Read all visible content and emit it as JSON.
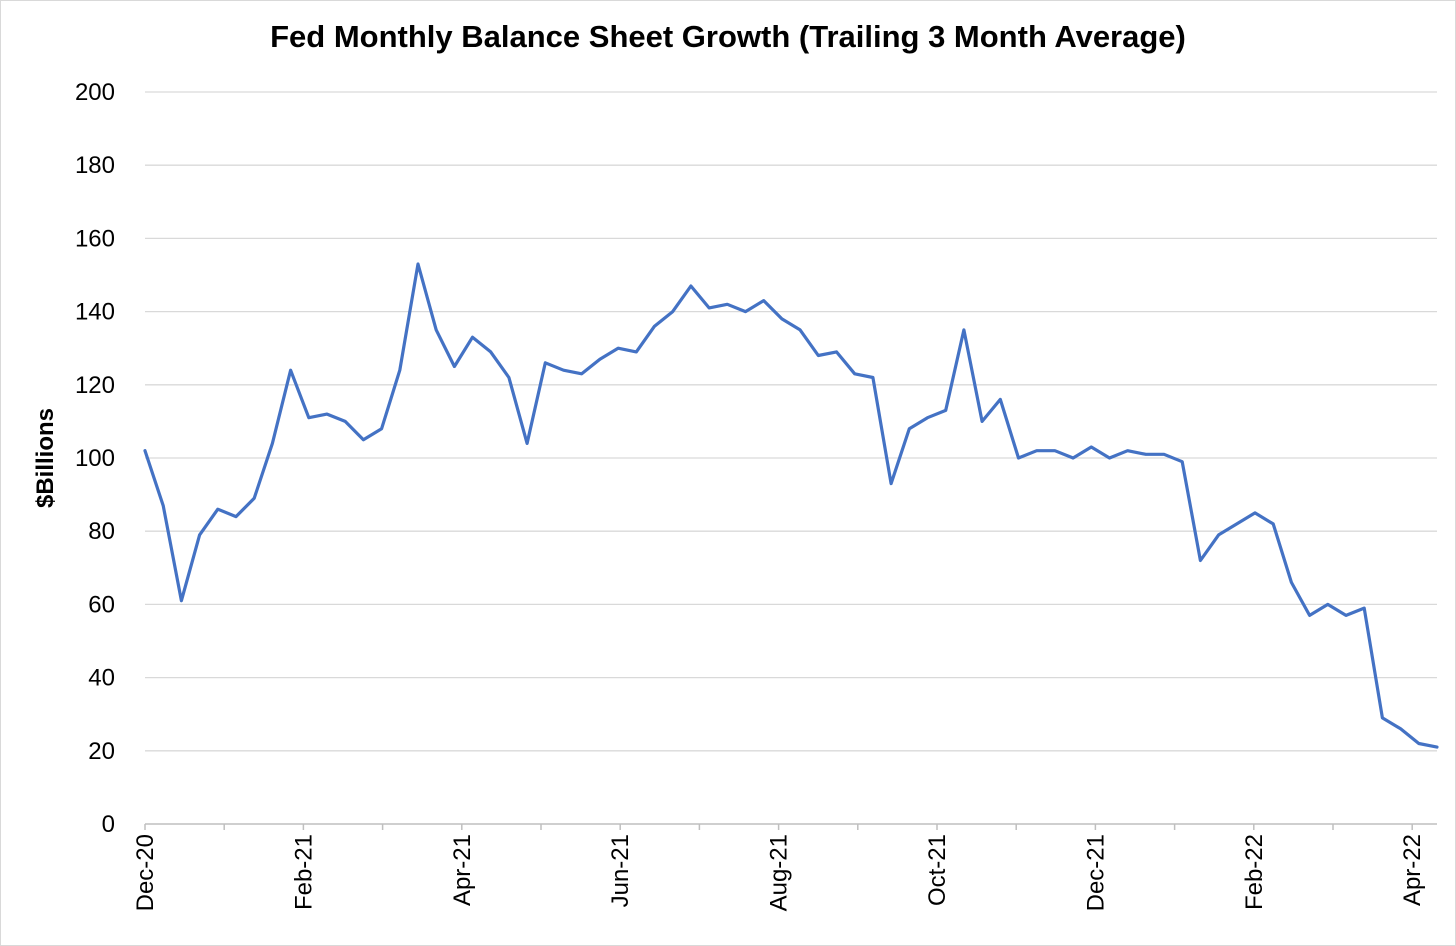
{
  "chart_data": {
    "type": "line",
    "title": "Fed Monthly Balance Sheet Growth (Trailing 3 Month Average)",
    "xlabel": "",
    "ylabel": "$Billions",
    "ylim": [
      0,
      200
    ],
    "yticks": [
      0,
      20,
      40,
      60,
      80,
      100,
      120,
      140,
      160,
      180,
      200
    ],
    "grid": "horizontal",
    "legend": "none",
    "x_tick_labels": [
      "Dec-20",
      "Feb-21",
      "Apr-21",
      "Jun-21",
      "Aug-21",
      "Oct-21",
      "Dec-21",
      "Feb-22",
      "Apr-22"
    ],
    "line_color": "#4472c4",
    "series": [
      {
        "values": [
          102,
          87,
          61,
          79,
          86,
          84,
          89,
          104,
          124,
          111,
          112,
          110,
          105,
          108,
          124,
          153,
          135,
          125,
          133,
          129,
          122,
          104,
          126,
          124,
          123,
          127,
          130,
          129,
          136,
          140,
          147,
          141,
          142,
          140,
          143,
          138,
          135,
          128,
          129,
          123,
          122,
          93,
          108,
          111,
          113,
          135,
          110,
          116,
          100,
          102,
          102,
          100,
          103,
          100,
          102,
          101,
          101,
          99,
          72,
          79,
          82,
          85,
          82,
          66,
          57,
          60,
          57,
          59,
          29,
          26,
          22,
          21
        ]
      }
    ]
  }
}
